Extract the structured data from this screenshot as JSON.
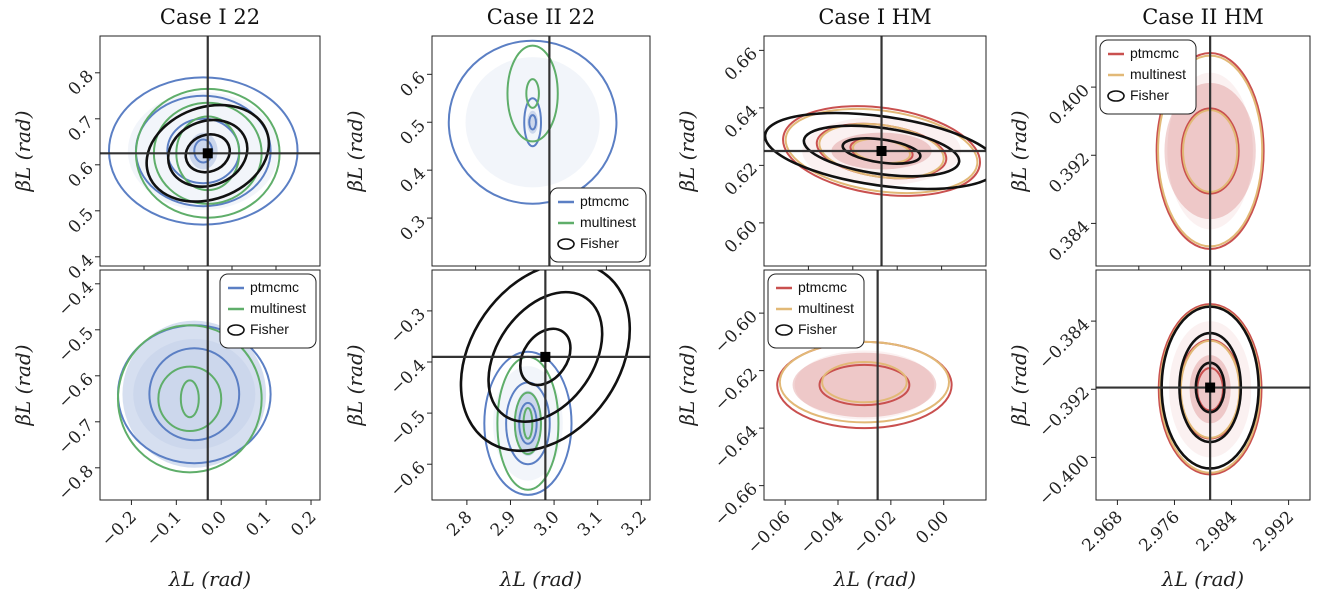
{
  "chart_data": [
    {
      "type": "scatter",
      "title": "Case I 22",
      "xlabel": "",
      "ylabel": "βL (rad)",
      "xlim": [
        -0.27,
        0.22
      ],
      "ylim": [
        0.38,
        0.88
      ],
      "xticks": [],
      "yticks": [
        "0.4",
        "0.5",
        "0.6",
        "0.7",
        "0.8"
      ],
      "ytick_values": [
        0.4,
        0.5,
        0.6,
        0.7,
        0.8
      ],
      "truth": [
        -0.03,
        0.625
      ],
      "legend": null,
      "series": [
        {
          "name": "ptmcmc",
          "color": "#5b7fc4",
          "center": [
            -0.04,
            0.63
          ],
          "radii": [
            [
              0.21,
              0.16
            ],
            [
              0.15,
              0.12
            ],
            [
              0.08,
              0.07
            ],
            [
              0.02,
              0.025
            ]
          ]
        },
        {
          "name": "multinest",
          "color": "#5fae6a",
          "center": [
            -0.03,
            0.625
          ],
          "radii": [
            [
              0.16,
              0.14
            ],
            [
              0.12,
              0.11
            ],
            [
              0.07,
              0.08
            ]
          ]
        },
        {
          "name": "Fisher",
          "color": "#111111",
          "center": [
            -0.03,
            0.625
          ],
          "radii": [
            [
              0.14,
              0.1
            ],
            [
              0.09,
              0.07
            ],
            [
              0.05,
              0.04
            ]
          ],
          "rotate": -20
        }
      ]
    },
    {
      "type": "scatter",
      "title": "Case II 22",
      "xlabel": "",
      "ylabel": "βL (rad)",
      "xlim": [
        2.7,
        3.22
      ],
      "ylim": [
        0.2,
        0.68
      ],
      "xticks": [],
      "yticks": [
        "0.3",
        "0.4",
        "0.5",
        "0.6"
      ],
      "ytick_values": [
        0.3,
        0.4,
        0.5,
        0.6
      ],
      "truth": [
        2.98,
        null
      ],
      "legend": {
        "position": "bottom-right",
        "entries": [
          "ptmcmc",
          "multinest",
          "Fisher"
        ]
      },
      "series": [
        {
          "name": "ptmcmc",
          "color": "#5b7fc4",
          "center": [
            2.94,
            0.5
          ],
          "radii": [
            [
              0.2,
              0.17
            ],
            [
              0.02,
              0.05
            ],
            [
              0.008,
              0.015
            ]
          ]
        },
        {
          "name": "multinest",
          "color": "#5fae6a",
          "center": [
            2.94,
            0.56
          ],
          "radii": [
            [
              0.06,
              0.1
            ],
            [
              0.015,
              0.03
            ]
          ]
        }
      ]
    },
    {
      "type": "scatter",
      "title": "Case I HM",
      "xlabel": "",
      "ylabel": "βL (rad)",
      "xlim": [
        -0.07,
        0.015
      ],
      "ylim": [
        0.585,
        0.665
      ],
      "xticks": [],
      "yticks": [
        "0.60",
        "0.62",
        "0.64",
        "0.66"
      ],
      "ytick_values": [
        0.6,
        0.62,
        0.64,
        0.66
      ],
      "truth": [
        -0.025,
        0.625
      ],
      "legend": null,
      "series": [
        {
          "name": "ptmcmc",
          "color": "#c9504f",
          "center": [
            -0.025,
            0.625
          ],
          "radii": [
            [
              0.038,
              0.015
            ],
            [
              0.025,
              0.009
            ],
            [
              0.012,
              0.004
            ]
          ],
          "rotate": 8
        },
        {
          "name": "multinest",
          "color": "#e2b977",
          "center": [
            -0.025,
            0.625
          ],
          "radii": [
            [
              0.037,
              0.014
            ],
            [
              0.024,
              0.009
            ],
            [
              0.011,
              0.004
            ]
          ],
          "rotate": 8
        },
        {
          "name": "Fisher",
          "color": "#111111",
          "center": [
            -0.025,
            0.625
          ],
          "radii": [
            [
              0.045,
              0.012
            ],
            [
              0.03,
              0.008
            ],
            [
              0.015,
              0.004
            ]
          ],
          "rotate": 8
        }
      ]
    },
    {
      "type": "scatter",
      "title": "Case II HM",
      "xlabel": "",
      "ylabel": "βL (rad)",
      "xlim": [
        2.965,
        2.995
      ],
      "ylim": [
        0.379,
        0.406
      ],
      "xticks": [],
      "yticks": [
        "0.384",
        "0.392",
        "0.400"
      ],
      "ytick_values": [
        0.384,
        0.392,
        0.4
      ],
      "truth": [
        2.981,
        null
      ],
      "legend": {
        "position": "top-left",
        "entries": [
          "ptmcmc",
          "multinest",
          "Fisher"
        ]
      },
      "series": [
        {
          "name": "ptmcmc",
          "color": "#c9504f",
          "center": [
            2.981,
            0.3925
          ],
          "radii": [
            [
              0.0075,
              0.0115
            ],
            [
              0.004,
              0.005
            ]
          ]
        },
        {
          "name": "multinest",
          "color": "#e2b977",
          "center": [
            2.981,
            0.3925
          ],
          "radii": [
            [
              0.0073,
              0.0112
            ],
            [
              0.0038,
              0.0048
            ]
          ]
        }
      ]
    },
    {
      "type": "scatter",
      "title": "",
      "xlabel": "λL (rad)",
      "ylabel": "βL (rad)",
      "xlim": [
        -0.27,
        0.22
      ],
      "ylim": [
        -0.87,
        -0.37
      ],
      "xticks": [
        "−0.2",
        "−0.1",
        "0.0",
        "0.1",
        "0.2"
      ],
      "xtick_values": [
        -0.2,
        -0.1,
        0.0,
        0.1,
        0.2
      ],
      "yticks": [
        "−0.8",
        "−0.7",
        "−0.6",
        "−0.5",
        "−0.4"
      ],
      "ytick_values": [
        -0.8,
        -0.7,
        -0.6,
        -0.5,
        -0.4
      ],
      "truth": [
        -0.03,
        null
      ],
      "legend": {
        "position": "top-right",
        "entries": [
          "ptmcmc",
          "multinest",
          "Fisher"
        ]
      },
      "series": [
        {
          "name": "ptmcmc",
          "color": "#5b7fc4",
          "center": [
            -0.06,
            -0.64
          ],
          "radii": [
            [
              0.17,
              0.15
            ],
            [
              0.1,
              0.1
            ]
          ]
        },
        {
          "name": "multinest",
          "color": "#5fae6a",
          "center": [
            -0.07,
            -0.65
          ],
          "radii": [
            [
              0.16,
              0.16
            ],
            [
              0.07,
              0.07
            ],
            [
              0.02,
              0.04
            ]
          ]
        }
      ]
    },
    {
      "type": "scatter",
      "title": "",
      "xlabel": "λL (rad)",
      "ylabel": "βL (rad)",
      "xlim": [
        2.72,
        3.22
      ],
      "ylim": [
        -0.67,
        -0.22
      ],
      "xticks": [
        "2.8",
        "2.9",
        "3.0",
        "3.1",
        "3.2"
      ],
      "xtick_values": [
        2.8,
        2.9,
        3.0,
        3.1,
        3.2
      ],
      "yticks": [
        "−0.6",
        "−0.5",
        "−0.4",
        "−0.3"
      ],
      "ytick_values": [
        -0.6,
        -0.5,
        -0.4,
        -0.3
      ],
      "truth": [
        2.98,
        -0.39
      ],
      "legend": null,
      "series": [
        {
          "name": "ptmcmc",
          "color": "#5b7fc4",
          "center": [
            2.94,
            -0.52
          ],
          "radii": [
            [
              0.1,
              0.14
            ],
            [
              0.05,
              0.08
            ],
            [
              0.02,
              0.04
            ]
          ]
        },
        {
          "name": "multinest",
          "color": "#5fae6a",
          "center": [
            2.94,
            -0.52
          ],
          "radii": [
            [
              0.07,
              0.13
            ],
            [
              0.03,
              0.06
            ],
            [
              0.01,
              0.03
            ]
          ]
        },
        {
          "name": "Fisher",
          "color": "#111111",
          "center": [
            2.98,
            -0.39
          ],
          "radii": [
            [
              0.17,
              0.2
            ],
            [
              0.11,
              0.14
            ],
            [
              0.05,
              0.06
            ]
          ],
          "rotate": 35
        }
      ]
    },
    {
      "type": "scatter",
      "title": "",
      "xlabel": "λL (rad)",
      "ylabel": "βL (rad)",
      "xlim": [
        -0.068,
        0.016
      ],
      "ylim": [
        -0.665,
        -0.585
      ],
      "xticks": [
        "−0.06",
        "−0.04",
        "−0.02",
        "0.00"
      ],
      "xtick_values": [
        -0.06,
        -0.04,
        -0.02,
        0.0
      ],
      "yticks": [
        "−0.66",
        "−0.64",
        "−0.62",
        "−0.60"
      ],
      "ytick_values": [
        -0.66,
        -0.64,
        -0.62,
        -0.6
      ],
      "truth": [
        -0.025,
        null
      ],
      "legend": {
        "position": "top-left",
        "entries": [
          "ptmcmc",
          "multinest",
          "Fisher"
        ]
      },
      "series": [
        {
          "name": "ptmcmc",
          "color": "#c9504f",
          "center": [
            -0.03,
            -0.625
          ],
          "radii": [
            [
              0.033,
              0.015
            ],
            [
              0.017,
              0.007
            ]
          ]
        },
        {
          "name": "multinest",
          "color": "#e2b977",
          "center": [
            -0.03,
            -0.624
          ],
          "radii": [
            [
              0.032,
              0.014
            ],
            [
              0.016,
              0.007
            ]
          ]
        }
      ]
    },
    {
      "type": "scatter",
      "title": "",
      "xlabel": "λL (rad)",
      "ylabel": "βL (rad)",
      "xlim": [
        2.965,
        2.995
      ],
      "ylim": [
        -0.405,
        -0.378
      ],
      "xticks": [
        "2.968",
        "2.976",
        "2.984",
        "2.992"
      ],
      "xtick_values": [
        2.968,
        2.976,
        2.984,
        2.992
      ],
      "yticks": [
        "−0.400",
        "−0.392",
        "−0.384"
      ],
      "ytick_values": [
        -0.4,
        -0.392,
        -0.384
      ],
      "truth": [
        2.981,
        -0.3918
      ],
      "legend": null,
      "series": [
        {
          "name": "ptmcmc",
          "color": "#c9504f",
          "center": [
            2.981,
            -0.392
          ],
          "radii": [
            [
              0.0072,
              0.01
            ],
            [
              0.0043,
              0.0058
            ],
            [
              0.0018,
              0.0025
            ]
          ]
        },
        {
          "name": "multinest",
          "color": "#e2b977",
          "center": [
            2.981,
            -0.392
          ],
          "radii": [
            [
              0.007,
              0.0098
            ],
            [
              0.0041,
              0.0057
            ]
          ]
        },
        {
          "name": "Fisher",
          "color": "#111111",
          "center": [
            2.981,
            -0.3918
          ],
          "radii": [
            [
              0.0068,
              0.0095
            ],
            [
              0.0043,
              0.0064
            ],
            [
              0.002,
              0.0029
            ]
          ]
        }
      ]
    }
  ]
}
